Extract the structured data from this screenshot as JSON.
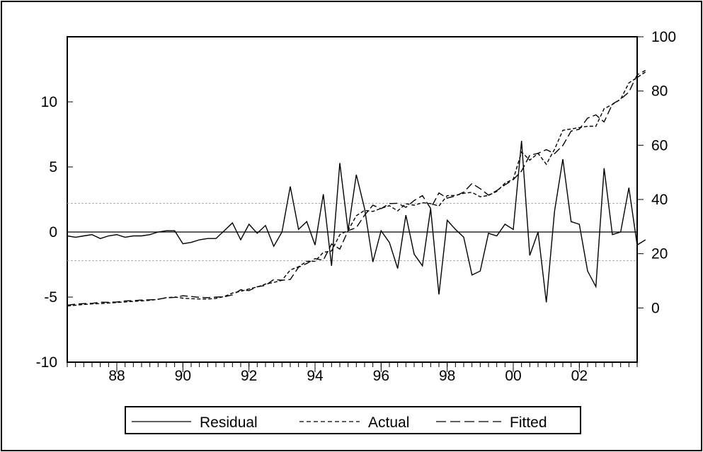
{
  "chart_data": {
    "type": "line",
    "title": "",
    "xlabel": "",
    "ylabel": "",
    "x_start": 1986.5,
    "x_step": 0.25,
    "x_ticks": [
      {
        "value": 1988,
        "label": "88"
      },
      {
        "value": 1990,
        "label": "90"
      },
      {
        "value": 1992,
        "label": "92"
      },
      {
        "value": 1994,
        "label": "94"
      },
      {
        "value": 1996,
        "label": "96"
      },
      {
        "value": 1998,
        "label": "98"
      },
      {
        "value": 2000,
        "label": "00"
      },
      {
        "value": 2002,
        "label": "02"
      }
    ],
    "xlim": [
      1986.5,
      2003.75
    ],
    "left_axis": {
      "ylim": [
        -10,
        15
      ],
      "ticks": [
        {
          "value": -10,
          "label": "-10"
        },
        {
          "value": -5,
          "label": "-5"
        },
        {
          "value": 0,
          "label": "0"
        },
        {
          "value": 5,
          "label": "5"
        },
        {
          "value": 10,
          "label": "10"
        }
      ],
      "std_band": [
        2.2,
        -2.2
      ]
    },
    "right_axis": {
      "ylim": [
        -20,
        100
      ],
      "ticks": [
        {
          "value": 0,
          "label": "0"
        },
        {
          "value": 20,
          "label": "20"
        },
        {
          "value": 40,
          "label": "40"
        },
        {
          "value": 60,
          "label": "60"
        },
        {
          "value": 80,
          "label": "80"
        },
        {
          "value": 100,
          "label": "100"
        }
      ]
    },
    "legend_position": "bottom-center",
    "series": [
      {
        "name": "Residual",
        "axis": "left",
        "style": "solid",
        "color": "#000000",
        "values": [
          -0.3,
          -0.4,
          -0.3,
          -0.2,
          -0.5,
          -0.3,
          -0.2,
          -0.4,
          -0.3,
          -0.3,
          -0.2,
          0.0,
          0.1,
          0.1,
          -0.9,
          -0.8,
          -0.6,
          -0.5,
          -0.5,
          0.1,
          0.7,
          -0.6,
          0.6,
          -0.1,
          0.5,
          -1.1,
          0.0,
          3.5,
          0.2,
          0.8,
          -1.0,
          2.9,
          -2.6,
          5.3,
          0.1,
          4.4,
          1.8,
          -2.3,
          0.1,
          -0.8,
          -2.8,
          1.3,
          -1.7,
          -2.6,
          1.8,
          -4.8,
          0.9,
          0.2,
          -0.4,
          -3.3,
          -3.0,
          -0.1,
          -0.3,
          0.6,
          0.2,
          7.0,
          -1.8,
          0.0,
          -5.4,
          1.6,
          5.6,
          0.8,
          0.6,
          -3.0,
          -4.2,
          4.9,
          -0.2,
          0.0,
          3.4,
          -1.0,
          -0.6
        ]
      },
      {
        "name": "Actual",
        "axis": "right",
        "style": "dashed",
        "color": "#000000",
        "values": [
          0.7,
          1.0,
          1.3,
          1.5,
          1.6,
          1.8,
          2.0,
          2.2,
          2.4,
          2.6,
          2.8,
          3.2,
          3.8,
          4.0,
          3.6,
          3.4,
          3.3,
          3.3,
          3.5,
          4.2,
          5.5,
          6.1,
          7.0,
          7.7,
          8.8,
          9.4,
          10.2,
          14.0,
          15.2,
          17.2,
          17.2,
          20.5,
          21.0,
          27.0,
          28.6,
          34.0,
          36.0,
          35.6,
          36.7,
          37.7,
          35.8,
          38.4,
          37.9,
          38.8,
          38.5,
          37.6,
          41.4,
          41.5,
          42.3,
          42.6,
          41.0,
          41.5,
          43.0,
          46.0,
          47.5,
          57.5,
          54.5,
          57.0,
          53.0,
          58.5,
          65.5,
          66.0,
          66.5,
          67.0,
          67.0,
          73.5,
          75.0,
          77.0,
          83.0,
          85.0,
          87.0
        ]
      },
      {
        "name": "Fitted",
        "axis": "right",
        "style": "longdash",
        "color": "#000000",
        "values": [
          1.0,
          1.4,
          1.6,
          1.7,
          2.1,
          2.1,
          2.2,
          2.6,
          2.7,
          2.9,
          3.0,
          3.2,
          3.7,
          3.9,
          4.5,
          4.2,
          3.9,
          3.8,
          4.0,
          4.1,
          4.8,
          6.7,
          6.4,
          7.8,
          8.3,
          10.5,
          10.2,
          10.5,
          15.0,
          16.4,
          18.2,
          17.6,
          23.6,
          21.7,
          28.5,
          29.6,
          34.2,
          37.9,
          36.6,
          38.5,
          38.6,
          37.1,
          39.6,
          41.4,
          36.7,
          42.4,
          40.5,
          41.3,
          42.7,
          45.9,
          44.0,
          41.6,
          43.3,
          45.4,
          47.3,
          50.5,
          56.3,
          57.0,
          58.4,
          56.9,
          59.9,
          65.2,
          65.9,
          70.0,
          71.2,
          68.6,
          75.2,
          77.0,
          79.6,
          86.0,
          87.6
        ]
      }
    ]
  },
  "legend": {
    "residual": "Residual",
    "actual": "Actual",
    "fitted": "Fitted"
  }
}
